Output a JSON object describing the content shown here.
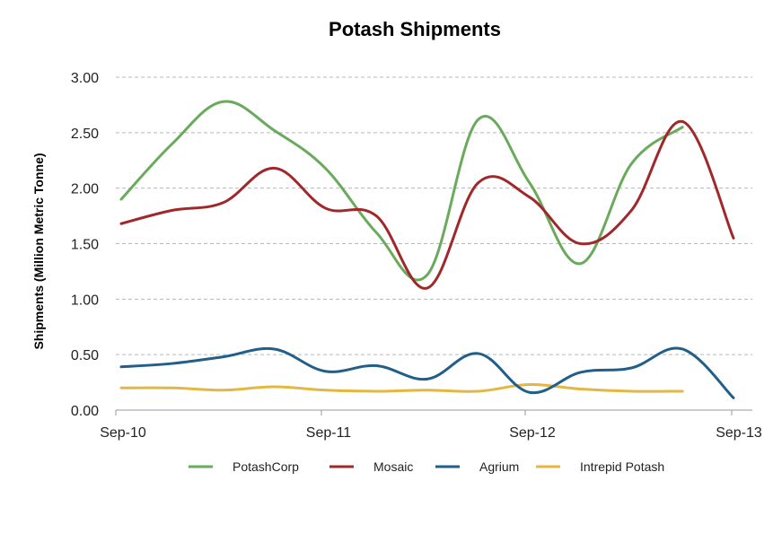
{
  "chart_data": {
    "type": "line",
    "title": "Potash Shipments",
    "xlabel": "",
    "ylabel": "Shipments (Million Metric Tonne)",
    "ylim": [
      0,
      3
    ],
    "yticks": [
      "0.00",
      "0.50",
      "1.00",
      "1.50",
      "2.00",
      "2.50",
      "3.00"
    ],
    "xtick_labels": [
      "Sep-10",
      "Sep-11",
      "Sep-12",
      "Sep-13"
    ],
    "x": [
      "Sep-10",
      "Dec-10",
      "Mar-11",
      "Jun-11",
      "Sep-11",
      "Dec-11",
      "Mar-12",
      "Jun-12",
      "Sep-12",
      "Dec-12",
      "Mar-13",
      "Jun-13",
      "Sep-13"
    ],
    "grid": "horizontal dashed",
    "legend_position": "bottom",
    "smooth": true,
    "series": [
      {
        "name": "PotashCorp",
        "color": "#6aaa5c",
        "values": [
          1.9,
          2.4,
          2.78,
          2.52,
          2.18,
          1.6,
          1.22,
          2.62,
          2.05,
          1.32,
          2.22,
          2.55,
          null
        ]
      },
      {
        "name": "Mosaic",
        "color": "#a0282a",
        "values": [
          1.68,
          1.8,
          1.87,
          2.18,
          1.82,
          1.75,
          1.1,
          2.05,
          1.92,
          1.5,
          1.8,
          2.6,
          1.55
        ]
      },
      {
        "name": "Agrium",
        "color": "#215f8a",
        "values": [
          0.39,
          0.42,
          0.48,
          0.55,
          0.35,
          0.4,
          0.28,
          0.51,
          0.16,
          0.34,
          0.38,
          0.55,
          0.11
        ]
      },
      {
        "name": "Intrepid Potash",
        "color": "#e2b843",
        "values": [
          0.2,
          0.2,
          0.18,
          0.21,
          0.18,
          0.17,
          0.18,
          0.17,
          0.23,
          0.19,
          0.17,
          0.17,
          null
        ]
      }
    ]
  }
}
